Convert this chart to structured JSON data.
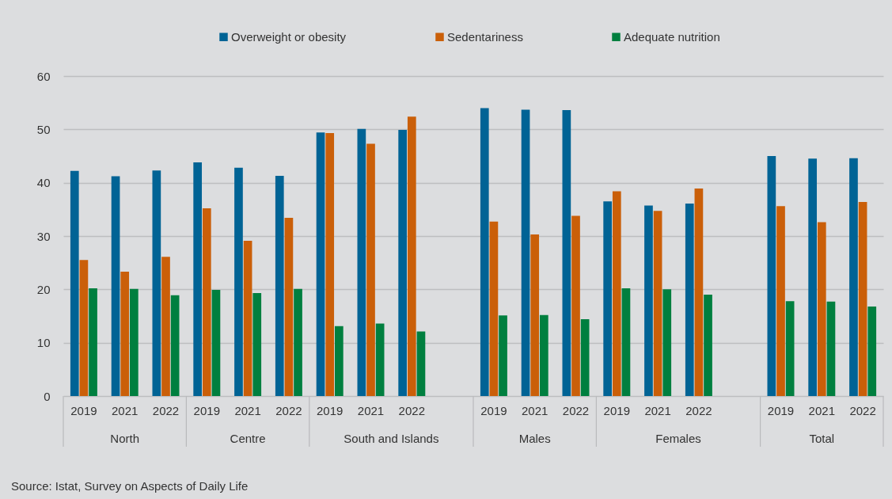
{
  "chart_data": {
    "type": "bar",
    "categories": [
      "2019",
      "2021",
      "2022",
      "2019",
      "2021",
      "2022",
      "2019",
      "2021",
      "2022",
      null,
      "2019",
      "2021",
      "2022",
      "2019",
      "2021",
      "2022",
      null,
      "2019",
      "2021",
      "2022"
    ],
    "series": [
      {
        "name": "Overweight or obesity",
        "color": "#006395",
        "values": [
          42.2,
          41.2,
          42.3,
          43.8,
          42.8,
          41.3,
          49.4,
          50.1,
          49.9,
          null,
          54.0,
          53.7,
          53.6,
          36.5,
          35.7,
          36.1,
          null,
          45.0,
          44.5,
          44.6
        ]
      },
      {
        "name": "Sedentariness",
        "color": "#ca5f09",
        "values": [
          25.5,
          23.3,
          26.1,
          35.2,
          29.1,
          33.4,
          49.3,
          47.3,
          52.4,
          null,
          32.7,
          30.3,
          33.8,
          38.4,
          34.7,
          38.9,
          null,
          35.6,
          32.6,
          36.4
        ]
      },
      {
        "name": "Adequate nutrition",
        "color": "#007f3f",
        "values": [
          20.2,
          20.1,
          18.9,
          19.9,
          19.3,
          20.1,
          13.1,
          13.6,
          12.1,
          null,
          15.1,
          15.2,
          14.4,
          20.2,
          20.0,
          19.0,
          null,
          17.8,
          17.7,
          16.8
        ]
      }
    ],
    "ylim": [
      0,
      60
    ],
    "yticks": [
      0,
      10,
      20,
      30,
      40,
      50,
      60
    ],
    "grid": "y",
    "legend": "top",
    "annotations": [
      "North",
      "Centre",
      "South and Islands",
      "Males",
      "Females",
      "Total",
      "Source: Istat, Survey on Aspects of Daily Life"
    ]
  }
}
